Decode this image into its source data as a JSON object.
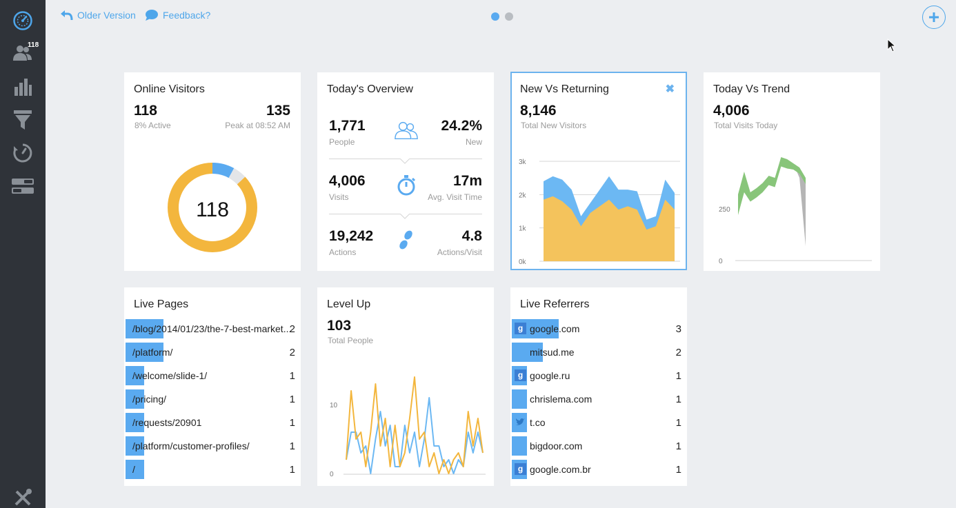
{
  "sidebar": {
    "items": [
      {
        "icon": "dashboard-icon"
      },
      {
        "icon": "users-icon",
        "badge": "118"
      },
      {
        "icon": "bar-chart-icon"
      },
      {
        "icon": "funnel-icon"
      },
      {
        "icon": "timer-icon"
      },
      {
        "icon": "toggles-icon"
      }
    ],
    "bottom_icon": "tools-icon"
  },
  "topbar": {
    "older_version": "Older Version",
    "feedback": "Feedback?",
    "accent": "#4ea6ea"
  },
  "online_visitors": {
    "title": "Online Visitors",
    "count": "118",
    "active": "8% Active",
    "peak": "135",
    "peak_label": "Peak at 08:52 AM",
    "donut_center": "118",
    "donut_segments": [
      {
        "label": "active",
        "fraction": 0.08,
        "color": "#5aaaf0"
      },
      {
        "label": "other",
        "fraction": 0.05,
        "color": "#e3e5e8"
      },
      {
        "label": "idle",
        "fraction": 0.87,
        "color": "#f3b63d"
      }
    ]
  },
  "todays_overview": {
    "title": "Today's Overview",
    "rows": [
      {
        "left_value": "1,771",
        "left_label": "People",
        "icon": "people-icon",
        "right_value": "24.2%",
        "right_label": "New"
      },
      {
        "left_value": "4,006",
        "left_label": "Visits",
        "icon": "stopwatch-icon",
        "right_value": "17m",
        "right_label": "Avg. Visit Time"
      },
      {
        "left_value": "19,242",
        "left_label": "Actions",
        "icon": "footsteps-icon",
        "right_value": "4.8",
        "right_label": "Actions/Visit"
      }
    ]
  },
  "new_vs_returning": {
    "title": "New Vs Returning",
    "value": "8,146",
    "label": "Total New Visitors"
  },
  "today_vs_trend": {
    "title": "Today Vs Trend",
    "value": "4,006",
    "label": "Total Visits Today"
  },
  "live_pages": {
    "title": "Live Pages",
    "items": [
      {
        "path": "/blog/2014/01/23/the-7-best-market...",
        "count": "2",
        "fraction": 0.22
      },
      {
        "path": "/platform/",
        "count": "2",
        "fraction": 0.22
      },
      {
        "path": "/welcome/slide-1/",
        "count": "1",
        "fraction": 0.11
      },
      {
        "path": "/pricing/",
        "count": "1",
        "fraction": 0.11
      },
      {
        "path": "/requests/20901",
        "count": "1",
        "fraction": 0.11
      },
      {
        "path": "/platform/customer-profiles/",
        "count": "1",
        "fraction": 0.11
      },
      {
        "path": "/",
        "count": "1",
        "fraction": 0.11
      }
    ]
  },
  "level_up": {
    "title": "Level Up",
    "value": "103",
    "label": "Total People"
  },
  "live_referrers": {
    "title": "Live Referrers",
    "items": [
      {
        "domain": "google.com",
        "count": "3",
        "icon": "g",
        "fraction": 0.27
      },
      {
        "domain": "mitsud.me",
        "count": "2",
        "icon": "",
        "fraction": 0.18
      },
      {
        "domain": "google.ru",
        "count": "1",
        "icon": "g",
        "fraction": 0.09
      },
      {
        "domain": "chrislema.com",
        "count": "1",
        "icon": "",
        "fraction": 0.09
      },
      {
        "domain": "t.co",
        "count": "1",
        "icon": "twitter",
        "fraction": 0.09
      },
      {
        "domain": "bigdoor.com",
        "count": "1",
        "icon": "",
        "fraction": 0.09
      },
      {
        "domain": "google.com.br",
        "count": "1",
        "icon": "g",
        "fraction": 0.09
      }
    ]
  },
  "chart_data": [
    {
      "type": "area",
      "title": "New Vs Returning",
      "yticks": [
        "0k",
        "1k",
        "2k",
        "3k"
      ],
      "ylim": [
        0,
        3000
      ],
      "series": [
        {
          "color": "#f4c35c",
          "values": [
            1850,
            1950,
            1800,
            1550,
            1050,
            1450,
            1650,
            1850,
            1550,
            1650,
            1550,
            950,
            1050,
            1850,
            1550
          ]
        },
        {
          "color": "#6cb8f3",
          "values": [
            2400,
            2550,
            2450,
            2150,
            1350,
            1750,
            2150,
            2550,
            2150,
            2150,
            2100,
            1250,
            1350,
            2450,
            2050
          ]
        }
      ]
    },
    {
      "type": "area",
      "title": "Today Vs Trend",
      "yticks": [
        "0",
        "250"
      ],
      "ylim": [
        0,
        500
      ],
      "series": [
        {
          "color": "#88c57a",
          "values": [
            320,
            430,
            330,
            350,
            375,
            410,
            400,
            500,
            490,
            470,
            450,
            400
          ]
        },
        {
          "color": "#b5b5b5",
          "values": [
            390,
            400,
            420,
            440,
            460,
            480,
            490,
            470,
            440,
            420,
            390,
            300
          ]
        }
      ]
    },
    {
      "type": "line",
      "title": "Level Up",
      "yticks": [
        "0",
        "10"
      ],
      "ylim": [
        0,
        14
      ],
      "series": [
        {
          "color": "#f3b63d",
          "values": [
            2,
            12,
            5,
            6,
            1,
            6,
            13,
            4,
            8,
            1,
            7,
            1,
            3,
            8,
            14,
            5,
            6,
            1,
            3,
            0,
            2,
            0,
            2,
            3,
            1,
            9,
            4,
            8,
            3
          ]
        },
        {
          "color": "#6cb8f3",
          "values": [
            2,
            6,
            6,
            3,
            4,
            0,
            5,
            9,
            4,
            7,
            1,
            1,
            7,
            3,
            6,
            1,
            5,
            11,
            4,
            4,
            1,
            2,
            0,
            2,
            1,
            6,
            3,
            6,
            3
          ]
        }
      ]
    }
  ]
}
